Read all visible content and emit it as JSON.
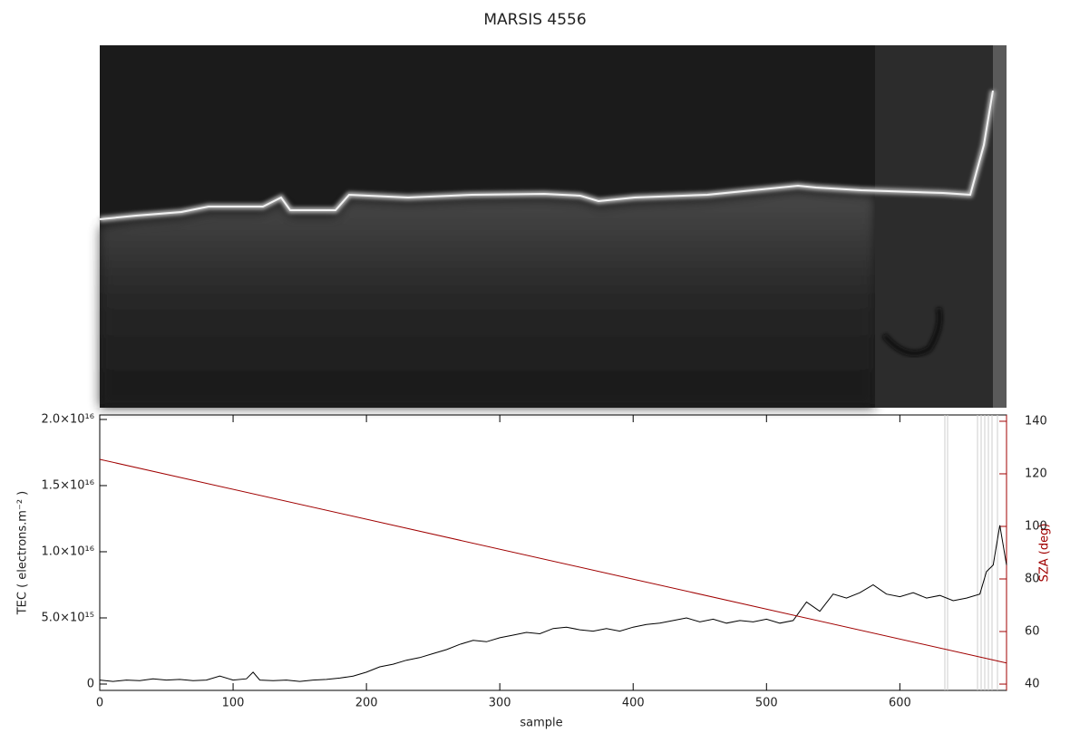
{
  "chart_data": {
    "type": "line",
    "title": "MARSIS 4556",
    "xlabel": "sample",
    "ylabel": "TEC ( electrons.m⁻² )",
    "y2label": "SZA (deg)",
    "y2color": "#a00000",
    "xlim": [
      0,
      680
    ],
    "xticks": [
      0,
      100,
      200,
      300,
      400,
      500,
      600
    ],
    "ylim": [
      -480000000000000.0,
      2.034e+16
    ],
    "yticks": [
      {
        "value": 0,
        "label": "0"
      },
      {
        "value": 5000000000000000.0,
        "label": "5.0×10¹⁵"
      },
      {
        "value": 1e+16,
        "label": "1.0×10¹⁶"
      },
      {
        "value": 1.5e+16,
        "label": "1.5×10¹⁶"
      },
      {
        "value": 2e+16,
        "label": "2.0×10¹⁶"
      }
    ],
    "y2lim": [
      37.6,
      142.4
    ],
    "y2ticks": [
      40,
      60,
      80,
      100,
      120,
      140
    ],
    "series": [
      {
        "color": "#000000",
        "x": [
          0,
          10,
          20,
          30,
          40,
          50,
          60,
          70,
          80,
          90,
          100,
          110,
          115,
          120,
          130,
          140,
          150,
          160,
          170,
          180,
          190,
          200,
          210,
          220,
          230,
          240,
          250,
          260,
          270,
          280,
          290,
          300,
          310,
          320,
          330,
          340,
          350,
          360,
          370,
          380,
          390,
          400,
          410,
          420,
          430,
          440,
          450,
          460,
          470,
          480,
          490,
          500,
          510,
          520,
          530,
          540,
          550,
          560,
          570,
          580,
          590,
          600,
          610,
          620,
          630,
          640,
          650,
          660,
          665,
          670,
          675,
          680
        ],
        "values": [
          300000000000000.0,
          200000000000000.0,
          300000000000000.0,
          250000000000000.0,
          400000000000000.0,
          300000000000000.0,
          350000000000000.0,
          250000000000000.0,
          300000000000000.0,
          600000000000000.0,
          300000000000000.0,
          400000000000000.0,
          900000000000000.0,
          300000000000000.0,
          250000000000000.0,
          300000000000000.0,
          200000000000000.0,
          300000000000000.0,
          350000000000000.0,
          450000000000000.0,
          600000000000000.0,
          900000000000000.0,
          1300000000000000.0,
          1500000000000000.0,
          1800000000000000.0,
          2000000000000000.0,
          2300000000000000.0,
          2600000000000000.0,
          3000000000000000.0,
          3300000000000000.0,
          3200000000000000.0,
          3500000000000000.0,
          3700000000000000.0,
          3900000000000000.0,
          3800000000000000.0,
          4200000000000000.0,
          4300000000000000.0,
          4100000000000000.0,
          4000000000000000.0,
          4200000000000000.0,
          4000000000000000.0,
          4300000000000000.0,
          4500000000000000.0,
          4600000000000000.0,
          4800000000000000.0,
          5000000000000000.0,
          4700000000000000.0,
          4900000000000000.0,
          4600000000000000.0,
          4800000000000000.0,
          4700000000000000.0,
          4900000000000000.0,
          4600000000000000.0,
          4800000000000000.0,
          6200000000000000.0,
          5500000000000000.0,
          6800000000000000.0,
          6500000000000000.0,
          6900000000000000.0,
          7500000000000000.0,
          6800000000000000.0,
          6600000000000000.0,
          6900000000000000.0,
          6500000000000000.0,
          6700000000000000.0,
          6300000000000000.0,
          6500000000000000.0,
          6800000000000000.0,
          8500000000000000.0,
          9000000000000000.0,
          1.2e+16,
          9000000000000000.0
        ]
      },
      {
        "color": "#a00000",
        "axis": "y2",
        "x": [
          0,
          680
        ],
        "values": [
          125.5,
          48
        ]
      }
    ]
  }
}
